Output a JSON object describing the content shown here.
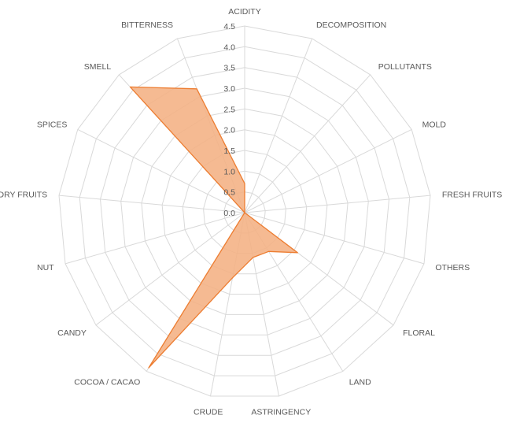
{
  "chart_data": {
    "type": "radar",
    "categories": [
      "ACIDITY",
      "DECOMPOSITION",
      "POLLUTANTS",
      "MOLD",
      "FRESH FRUITS",
      "OTHERS",
      "FLORAL",
      "LAND",
      "ASTRINGENCY",
      "CRUDE",
      "COCOA / CACAO",
      "CANDY",
      "NUT",
      "DRY FRUITS",
      "SPICES",
      "SMELL",
      "BITTERNESS"
    ],
    "series": [
      {
        "values": [
          0.7,
          0.0,
          0.0,
          0.0,
          0.0,
          0.0,
          1.6,
          1.1,
          1.1,
          1.6,
          4.4,
          0.0,
          0.0,
          0.0,
          0.0,
          4.1,
          3.2
        ]
      }
    ],
    "r_ticks": [
      "0.0",
      "0.5",
      "1.0",
      "1.5",
      "2.0",
      "2.5",
      "3.0",
      "3.5",
      "4.0",
      "4.5"
    ],
    "r_range": [
      0,
      4.5
    ],
    "grid": true,
    "legend": "none",
    "colors": {
      "fill": "#f4b183",
      "stroke": "#ed7d31",
      "grid": "#d9d9d9",
      "text": "#595959"
    }
  }
}
